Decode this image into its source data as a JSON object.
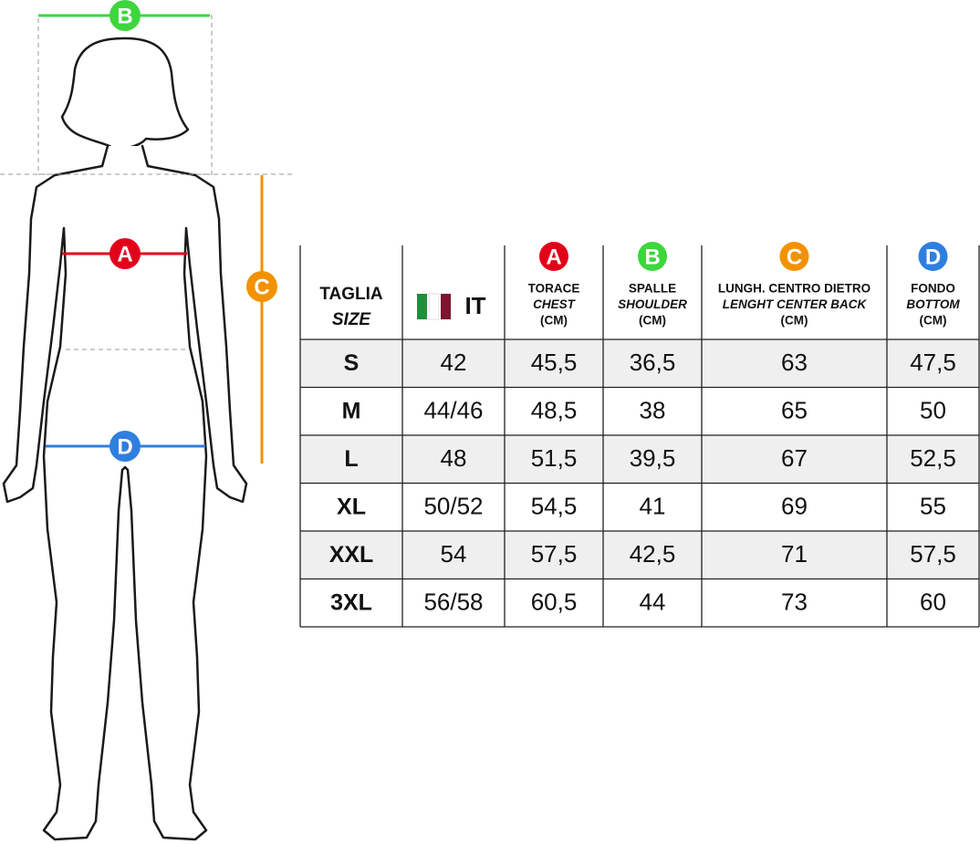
{
  "figure": {
    "markers": [
      "A",
      "B",
      "C",
      "D"
    ]
  },
  "table": {
    "header": [
      {
        "lines": [
          "TAGLIA",
          "SIZE"
        ]
      },
      {
        "label": "IT"
      },
      {
        "letter": "A",
        "lines": [
          "TORACE",
          "CHEST",
          "(CM)"
        ]
      },
      {
        "letter": "B",
        "lines": [
          "SPALLE",
          "SHOULDER",
          "(CM)"
        ]
      },
      {
        "letter": "C",
        "lines": [
          "LUNGH. CENTRO DIETRO",
          "LENGHT CENTER BACK",
          "(CM)"
        ]
      },
      {
        "letter": "D",
        "lines": [
          "FONDO",
          "BOTTOM",
          "(CM)"
        ]
      }
    ],
    "rows": [
      [
        "S",
        "42",
        "45,5",
        "36,5",
        "63",
        "47,5"
      ],
      [
        "M",
        "44/46",
        "48,5",
        "38",
        "65",
        "50"
      ],
      [
        "L",
        "48",
        "51,5",
        "39,5",
        "67",
        "52,5"
      ],
      [
        "XL",
        "50/52",
        "54,5",
        "41",
        "69",
        "55"
      ],
      [
        "XXL",
        "54",
        "57,5",
        "42,5",
        "71",
        "57,5"
      ],
      [
        "3XL",
        "56/58",
        "60,5",
        "44",
        "73",
        "60"
      ]
    ]
  }
}
